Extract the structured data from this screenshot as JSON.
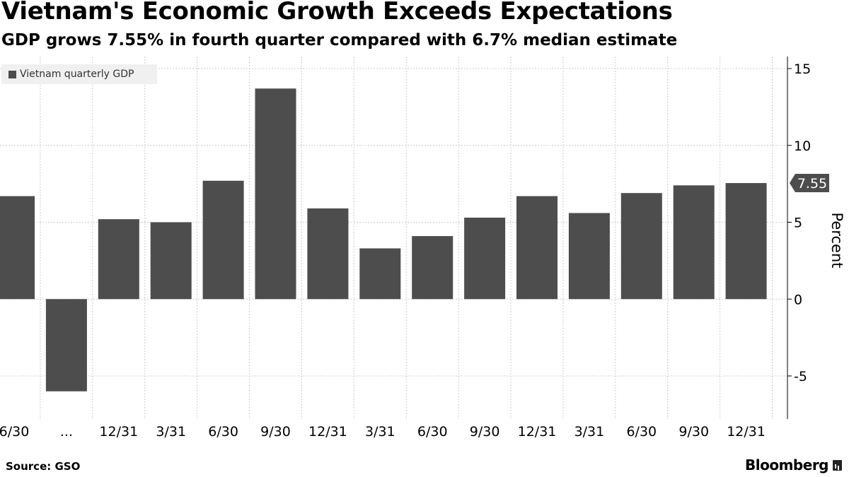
{
  "title": "Vietnam's Economic Growth Exceeds Expectations",
  "subtitle": "GDP grows 7.55% in fourth quarter compared with 6.7% median estimate",
  "source": "Source: GSO",
  "brand": "Bloomberg",
  "colors": {
    "bar": "#4d4d4d",
    "grid": "#cccccc",
    "legend_bg": "#f0f0f0",
    "callout": "#4d4d4d"
  },
  "chart_data": {
    "type": "bar",
    "categories": [
      "6/30",
      "...",
      "12/31",
      "3/31",
      "6/30",
      "9/30",
      "12/31",
      "3/31",
      "6/30",
      "9/30",
      "12/31",
      "3/31",
      "6/30",
      "9/30",
      "12/31"
    ],
    "series": [
      {
        "name": "Vietnam quarterly GDP",
        "values": [
          6.7,
          -6.0,
          5.2,
          5.0,
          7.7,
          13.7,
          5.9,
          3.3,
          4.1,
          5.3,
          6.7,
          5.6,
          6.9,
          7.4,
          7.55
        ]
      }
    ],
    "ylabel": "Percent",
    "ylim": [
      -7.6,
      15.2
    ],
    "yticks": [
      15,
      10,
      5,
      0,
      -5
    ],
    "ytick_labels": [
      "15",
      "10",
      "5",
      "0",
      "-5"
    ],
    "last_value_callout": "7.55",
    "y_axis_side": "right",
    "grid": true,
    "legend_position": "top-left"
  }
}
